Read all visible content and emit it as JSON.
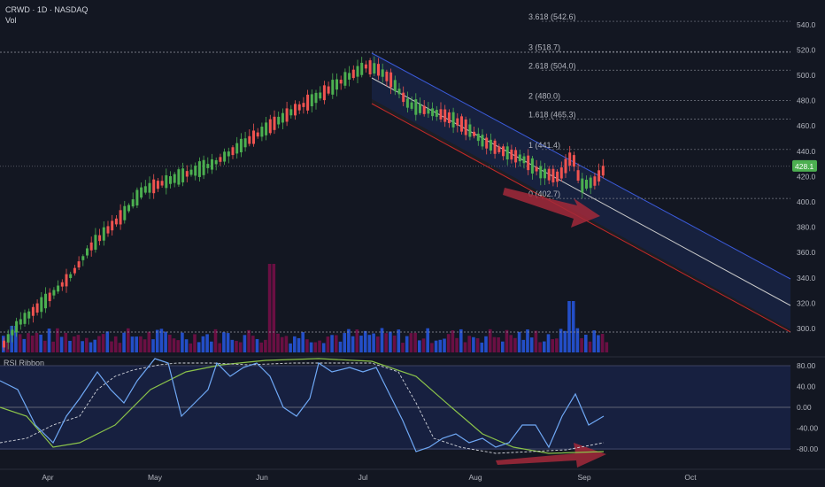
{
  "header": {
    "symbol_line": "CRWD · 1D · NASDAQ",
    "vol_label": "Vol",
    "indicator_label": "RSI Ribbon"
  },
  "price_badge": "428.1",
  "chart_data": {
    "type": "candlestick",
    "price_axis": {
      "ticks": [
        300,
        320,
        340,
        360,
        380,
        400,
        420,
        440,
        460,
        480,
        500,
        520,
        540
      ],
      "ylim": [
        296,
        560
      ]
    },
    "time_axis": {
      "labels": [
        "Apr",
        "May",
        "Jun",
        "Jul",
        "Aug",
        "Sep",
        "Oct"
      ]
    },
    "rsi_axis": {
      "ticks": [
        "80.00",
        "40.00",
        "0.00",
        "-40.00",
        "-80.00"
      ],
      "values": [
        80,
        40,
        0,
        -40,
        -80
      ]
    },
    "fib_levels": [
      {
        "label": "3.618 (542.6)",
        "value": 542.6
      },
      {
        "label": "3 (518.7)",
        "value": 518.7
      },
      {
        "label": "2.618 (504.0)",
        "value": 504.0
      },
      {
        "label": "2 (480.0)",
        "value": 480.0
      },
      {
        "label": "1.618 (465.3)",
        "value": 465.3
      },
      {
        "label": "1 (441.4)",
        "value": 441.4
      },
      {
        "label": "0 (402.7)",
        "value": 402.7
      }
    ],
    "last_price": 428.1,
    "colors": {
      "up": "#26a69a",
      "up_fill": "#4caf50",
      "down": "#ef5350",
      "channel_upper": "#3b5bdb",
      "channel_mid": "#c8c8c8",
      "channel_lower": "#c62828",
      "rsi_fast": "#6fa8f5",
      "rsi_slow": "#8bc34a",
      "rsi_signal": "#d1d4dc",
      "arrow": "#a3293a",
      "vol_up": "#2962ff",
      "vol_down": "#880e4f"
    }
  }
}
